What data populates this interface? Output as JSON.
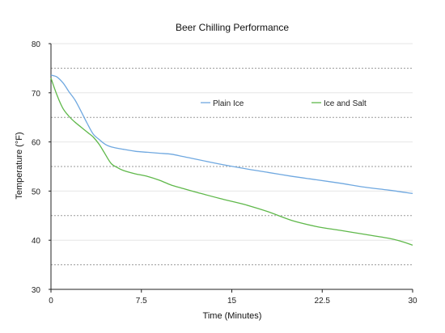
{
  "chart_data": {
    "type": "line",
    "title": "Beer Chilling Performance",
    "xlabel": "Time (Minutes)",
    "ylabel": "Temperature (°F)",
    "xlim": [
      0,
      30
    ],
    "ylim": [
      30,
      80
    ],
    "xticks": [
      0,
      7.5,
      15,
      22.5,
      30
    ],
    "xtick_labels": [
      "0",
      "7.5",
      "15",
      "22.5",
      "30"
    ],
    "yticks": [
      30,
      40,
      50,
      60,
      70,
      80
    ],
    "ytick_labels": [
      "30",
      "40",
      "50",
      "60",
      "70",
      "80"
    ],
    "grid": {
      "solid": [
        40,
        50,
        60,
        70,
        80
      ],
      "dashed": [
        35,
        45,
        55,
        65,
        75
      ]
    },
    "legend": "inside-top-right",
    "series": [
      {
        "name": "Plain Ice",
        "color": "#6fa8e0",
        "x": [
          0,
          0.5,
          1,
          1.5,
          2,
          2.5,
          3,
          3.5,
          4,
          4.5,
          5,
          6,
          7,
          8,
          9,
          10,
          11,
          12,
          14,
          16,
          18,
          20,
          22,
          24,
          26,
          28,
          30
        ],
        "y": [
          73.6,
          73.2,
          72.0,
          70.2,
          68.5,
          66.2,
          63.8,
          61.6,
          60.5,
          59.5,
          59.0,
          58.5,
          58.1,
          57.9,
          57.7,
          57.5,
          57.0,
          56.5,
          55.5,
          54.6,
          53.8,
          53.0,
          52.3,
          51.6,
          50.8,
          50.2,
          49.5
        ]
      },
      {
        "name": "Ice and Salt",
        "color": "#5fb84a",
        "x": [
          0,
          0.5,
          1,
          1.5,
          2,
          2.5,
          3,
          3.5,
          4,
          4.5,
          5,
          5.5,
          6,
          7,
          8,
          9,
          10,
          11,
          12,
          14,
          16,
          18,
          20,
          22,
          24,
          26,
          28,
          29,
          30
        ],
        "y": [
          73.0,
          69.5,
          66.8,
          65.2,
          64.0,
          63.0,
          62.0,
          61.0,
          59.5,
          57.5,
          55.6,
          54.8,
          54.2,
          53.5,
          53.0,
          52.2,
          51.2,
          50.5,
          49.8,
          48.5,
          47.3,
          45.8,
          44.0,
          42.8,
          42.0,
          41.2,
          40.4,
          39.8,
          39.0
        ]
      }
    ]
  }
}
